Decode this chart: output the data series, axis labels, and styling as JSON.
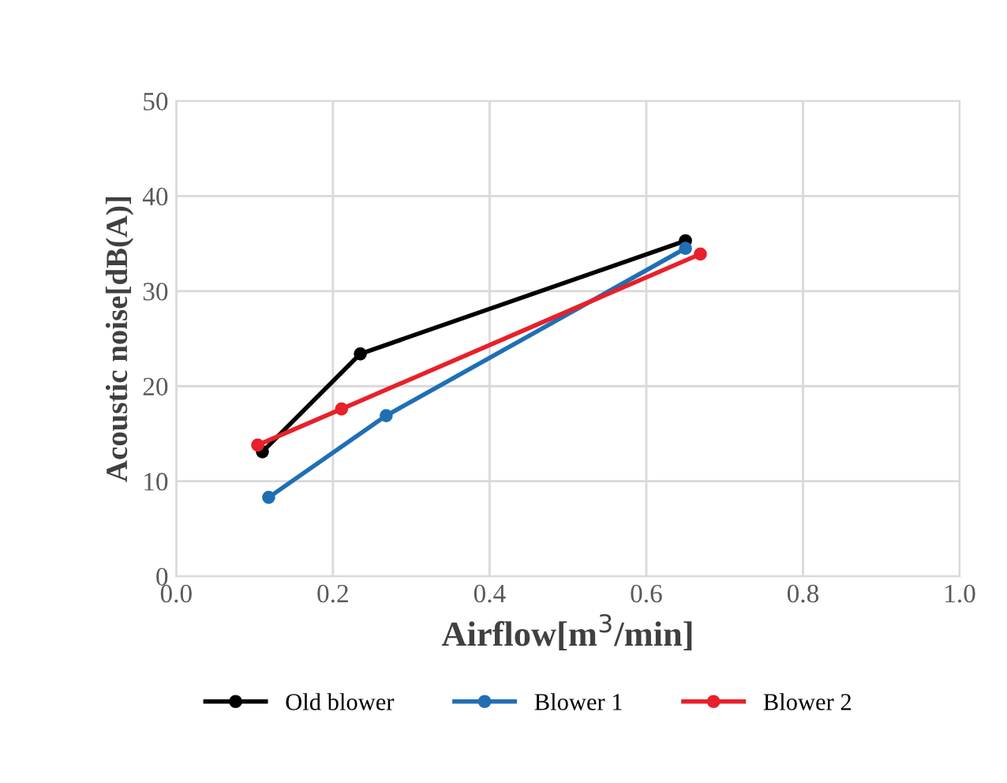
{
  "chart_data": {
    "type": "line",
    "xlabel": "Airflow[m$^{3}$/min]",
    "ylabel": "Acoustic noise[dB(A)]",
    "xlim": [
      0,
      1
    ],
    "xticks": [
      {
        "value": 0,
        "label": "0.0"
      },
      {
        "value": 0.2,
        "label": "0.2"
      },
      {
        "value": 0.4,
        "label": "0.4"
      },
      {
        "value": 0.6,
        "label": "0.6"
      },
      {
        "value": 0.8,
        "label": "0.8"
      },
      {
        "value": 1,
        "label": "1.0"
      }
    ],
    "ylim": [
      0,
      50
    ],
    "yticks": [
      0,
      10,
      20,
      30,
      40,
      50
    ],
    "grid": true,
    "legend": "bottom",
    "marker": "circle",
    "line_style": "solid",
    "series": [
      {
        "name": "Old blower",
        "color": "#000000",
        "x": [
          0.11,
          0.235,
          0.65
        ],
        "values": [
          13.1,
          23.4,
          35.3
        ]
      },
      {
        "name": "Blower 1",
        "color": "#1f6fb5",
        "x": [
          0.118,
          0.268,
          0.65
        ],
        "values": [
          8.3,
          16.9,
          34.5
        ]
      },
      {
        "name": "Blower 2",
        "color": "#e8202a",
        "x": [
          0.104,
          0.211,
          0.669
        ],
        "values": [
          13.8,
          17.6,
          33.9
        ]
      }
    ]
  }
}
